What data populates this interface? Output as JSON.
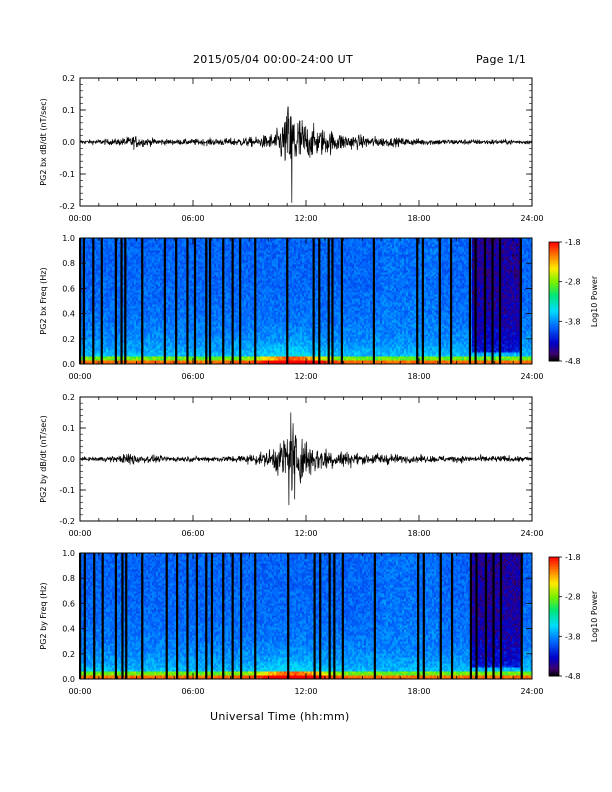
{
  "header": {
    "title": "2015/05/04  00:00-24:00 UT",
    "page": "Page 1/1"
  },
  "footer": {
    "x_axis_title": "Universal Time (hh:mm)"
  },
  "chart_data": [
    {
      "type": "line",
      "ylabel": "PG2 bx dB/dt (nT/sec)",
      "x_ticks": [
        "00:00",
        "06:00",
        "12:00",
        "18:00",
        "24:00"
      ],
      "y_ticks": [
        "-0.2",
        "-0.1",
        "0.0",
        "0.1",
        "0.2"
      ],
      "xlim": [
        0,
        24
      ],
      "ylim": [
        -0.2,
        0.2
      ],
      "series": [
        {
          "envelope": [
            {
              "x": 0,
              "y": 0.006
            },
            {
              "x": 1,
              "y": 0.008
            },
            {
              "x": 2,
              "y": 0.01
            },
            {
              "x": 2.9,
              "y": 0.02
            },
            {
              "x": 3.5,
              "y": 0.012
            },
            {
              "x": 5,
              "y": 0.008
            },
            {
              "x": 6.5,
              "y": 0.01
            },
            {
              "x": 8,
              "y": 0.012
            },
            {
              "x": 9.5,
              "y": 0.016
            },
            {
              "x": 10.4,
              "y": 0.03
            },
            {
              "x": 11.0,
              "y": 0.09
            },
            {
              "x": 11.3,
              "y": 0.11
            },
            {
              "x": 11.7,
              "y": 0.08
            },
            {
              "x": 12.2,
              "y": 0.05
            },
            {
              "x": 13,
              "y": 0.04
            },
            {
              "x": 14,
              "y": 0.025
            },
            {
              "x": 15,
              "y": 0.02
            },
            {
              "x": 16,
              "y": 0.015
            },
            {
              "x": 18,
              "y": 0.01
            },
            {
              "x": 20,
              "y": 0.008
            },
            {
              "x": 22,
              "y": 0.008
            },
            {
              "x": 24,
              "y": 0.006
            }
          ],
          "extremes": [
            {
              "x": 11.25,
              "y": -0.19
            },
            {
              "x": 11.05,
              "y": 0.11
            }
          ]
        }
      ]
    },
    {
      "type": "heatmap",
      "ylabel": "PG2 bx Freq (Hz)",
      "x_ticks": [
        "00:00",
        "06:00",
        "12:00",
        "18:00",
        "24:00"
      ],
      "y_ticks": [
        "0.0",
        "0.2",
        "0.4",
        "0.6",
        "0.8",
        "1.0"
      ],
      "xlim": [
        0,
        24
      ],
      "ylim": [
        0,
        1.0
      ],
      "colorbar": {
        "label": "Log10 Power",
        "ticks": [
          "-1.8",
          "-2.8",
          "-3.8",
          "-4.8"
        ],
        "range": [
          -4.8,
          -1.8
        ]
      },
      "vertical_gaps_hours": [
        0.0,
        0.2,
        0.7,
        1.15,
        1.9,
        2.2,
        2.4,
        3.3,
        4.5,
        5.1,
        5.7,
        6.1,
        6.7,
        6.9,
        7.6,
        8.1,
        8.5,
        9.3,
        11.0,
        12.4,
        12.7,
        13.2,
        13.4,
        13.9,
        15.6,
        17.9,
        18.2,
        19.1,
        19.7,
        20.7,
        21.0,
        21.5,
        21.9,
        22.3,
        23.4
      ],
      "level_description": [
        {
          "freq_hz": 0.0,
          "log10_power": -1.8
        },
        {
          "freq_hz": 0.05,
          "log10_power": -2.8
        },
        {
          "freq_hz": 0.2,
          "log10_power": -3.5
        },
        {
          "freq_hz": 1.0,
          "log10_power": -3.9
        }
      ]
    },
    {
      "type": "line",
      "ylabel": "PG2 by dB/dt (nT/sec)",
      "x_ticks": [
        "00:00",
        "06:00",
        "12:00",
        "18:00",
        "24:00"
      ],
      "y_ticks": [
        "-0.2",
        "-0.1",
        "0.0",
        "0.1",
        "0.2"
      ],
      "xlim": [
        0,
        24
      ],
      "ylim": [
        -0.2,
        0.2
      ],
      "series": [
        {
          "envelope": [
            {
              "x": 0,
              "y": 0.005
            },
            {
              "x": 1,
              "y": 0.007
            },
            {
              "x": 2,
              "y": 0.01
            },
            {
              "x": 2.8,
              "y": 0.022
            },
            {
              "x": 3.4,
              "y": 0.012
            },
            {
              "x": 5,
              "y": 0.008
            },
            {
              "x": 7,
              "y": 0.008
            },
            {
              "x": 8.5,
              "y": 0.012
            },
            {
              "x": 9.8,
              "y": 0.02
            },
            {
              "x": 10.6,
              "y": 0.05
            },
            {
              "x": 11.1,
              "y": 0.12
            },
            {
              "x": 11.5,
              "y": 0.1
            },
            {
              "x": 12,
              "y": 0.06
            },
            {
              "x": 13,
              "y": 0.035
            },
            {
              "x": 14,
              "y": 0.025
            },
            {
              "x": 15,
              "y": 0.015
            },
            {
              "x": 16,
              "y": 0.02
            },
            {
              "x": 17,
              "y": 0.012
            },
            {
              "x": 19,
              "y": 0.01
            },
            {
              "x": 21,
              "y": 0.01
            },
            {
              "x": 22.5,
              "y": 0.01
            },
            {
              "x": 24,
              "y": 0.008
            }
          ],
          "extremes": [
            {
              "x": 11.2,
              "y": 0.15
            },
            {
              "x": 11.4,
              "y": -0.13
            }
          ]
        }
      ]
    },
    {
      "type": "heatmap",
      "ylabel": "PG2 by Freq (Hz)",
      "x_ticks": [
        "00:00",
        "06:00",
        "12:00",
        "18:00",
        "24:00"
      ],
      "y_ticks": [
        "0.0",
        "0.2",
        "0.4",
        "0.6",
        "0.8",
        "1.0"
      ],
      "xlim": [
        0,
        24
      ],
      "ylim": [
        0,
        1.0
      ],
      "colorbar": {
        "label": "Log10 Power",
        "ticks": [
          "-1.8",
          "-2.8",
          "-3.8",
          "-4.8"
        ],
        "range": [
          -4.8,
          -1.8
        ]
      },
      "vertical_gaps_hours": [
        0.0,
        0.25,
        0.75,
        1.2,
        1.9,
        2.25,
        2.45,
        3.3,
        4.6,
        5.15,
        5.7,
        6.2,
        6.7,
        7.0,
        7.6,
        8.1,
        8.55,
        9.3,
        11.05,
        12.45,
        12.75,
        13.25,
        13.5,
        13.95,
        15.65,
        17.95,
        18.25,
        19.15,
        19.75,
        20.75,
        21.05,
        21.55,
        21.95,
        22.35,
        23.45
      ],
      "level_description": [
        {
          "freq_hz": 0.0,
          "log10_power": -1.8
        },
        {
          "freq_hz": 0.05,
          "log10_power": -2.8
        },
        {
          "freq_hz": 0.2,
          "log10_power": -3.5
        },
        {
          "freq_hz": 1.0,
          "log10_power": -3.9
        }
      ]
    }
  ]
}
